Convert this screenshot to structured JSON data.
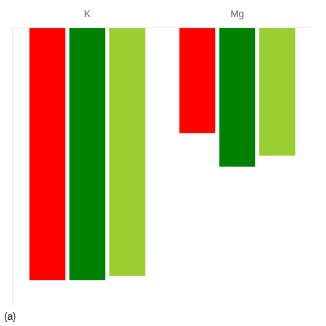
{
  "chart_data": {
    "type": "bar",
    "categories": [
      "K",
      "Mg"
    ],
    "series": [
      {
        "color": "#ff0000",
        "values": [
          -3.0,
          -1.25
        ]
      },
      {
        "color": "#008000",
        "values": [
          -3.0,
          -1.65
        ]
      },
      {
        "color": "#9acd32",
        "values": [
          -2.95,
          -1.52
        ]
      }
    ],
    "ylim": [
      -3.3,
      0.0
    ],
    "grid": false,
    "tick_labels": "x",
    "annotations": [
      "(a)"
    ]
  }
}
